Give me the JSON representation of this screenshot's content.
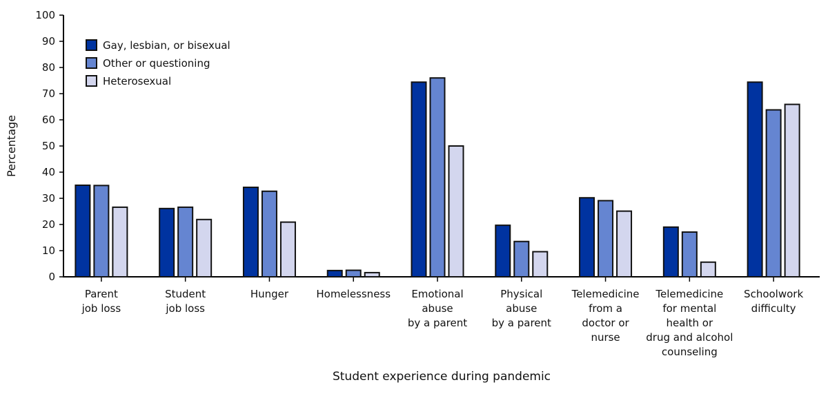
{
  "chart_data": {
    "type": "bar",
    "title": "",
    "xlabel": "Student experience during pandemic",
    "ylabel": "Percentage",
    "ylim": [
      0,
      100
    ],
    "yticks": [
      0,
      10,
      20,
      30,
      40,
      50,
      60,
      70,
      80,
      90,
      100
    ],
    "grid": false,
    "legend_position": "top-left",
    "categories": [
      [
        "Parent",
        "job loss"
      ],
      [
        "Student",
        "job loss"
      ],
      [
        "Hunger"
      ],
      [
        "Homelessness"
      ],
      [
        "Emotional",
        "abuse",
        "by a parent"
      ],
      [
        "Physical",
        "abuse",
        "by a parent"
      ],
      [
        "Telemedicine",
        "from a",
        "doctor or",
        "nurse"
      ],
      [
        "Telemedicine",
        "for mental",
        "health or",
        "drug and alcohol",
        "counseling"
      ],
      [
        "Schoolwork",
        "difficulty"
      ]
    ],
    "series": [
      {
        "name": "Gay, lesbian, or bisexual",
        "color": "#0033a0",
        "values": [
          35.0,
          26.1,
          34.2,
          2.4,
          74.4,
          19.7,
          30.2,
          19.0,
          74.4
        ]
      },
      {
        "name": "Other or questioning",
        "color": "#6585d1",
        "values": [
          34.9,
          26.6,
          32.7,
          2.5,
          76.0,
          13.5,
          29.1,
          17.1,
          63.8
        ]
      },
      {
        "name": "Heterosexual",
        "color": "#d3d6ee",
        "values": [
          26.6,
          21.9,
          20.9,
          1.6,
          50.0,
          9.6,
          25.1,
          5.6,
          65.9
        ]
      }
    ]
  }
}
